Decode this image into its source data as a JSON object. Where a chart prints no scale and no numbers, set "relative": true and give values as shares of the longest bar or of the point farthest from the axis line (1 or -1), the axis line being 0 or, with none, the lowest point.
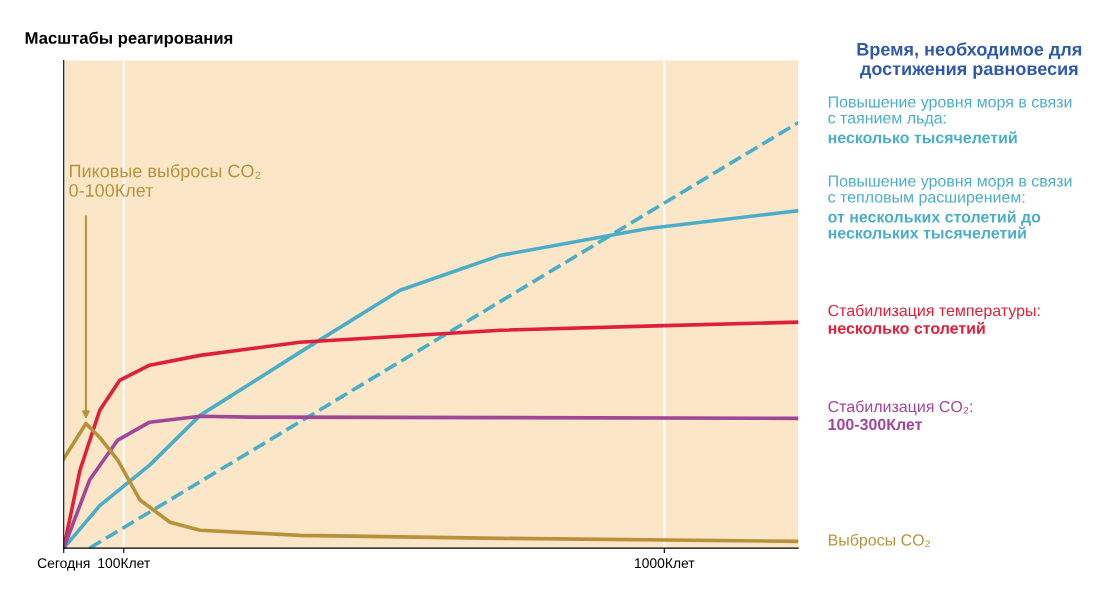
{
  "chart_data": {
    "type": "line",
    "title": "Масштабы реагирования",
    "relative": true,
    "tick_labels": "x",
    "grid": "x",
    "legend": false,
    "xlim": [
      0,
      1223
    ],
    "xticks": [
      {
        "value": 0,
        "label": "Сегодня"
      },
      {
        "value": 100,
        "label": "100Клет"
      },
      {
        "value": 1000,
        "label": "1000Клет"
      }
    ],
    "annotations": [
      "Время, необходимое для\nдостижения равновесия",
      "Пиковые выбросы CO₂\n0-100Клет"
    ],
    "series": [
      {
        "name": "Повышение уровня моря в связи\nс таянием льда:\nнесколько тысячелетий",
        "color": "#4aaec8",
        "line_style": "dashed",
        "x": [
          43,
          1223
        ],
        "values": [
          0,
          1
        ]
      },
      {
        "name": "Повышение уровня моря в связи\nс тепловым расширением:\nот нескольких столетий до\nнескольких тысячелетий",
        "color": "#4aaec8",
        "line_style": "solid",
        "x": [
          0,
          60,
          143,
          227,
          393,
          560,
          727,
          973,
          1223
        ],
        "values": [
          0,
          0.1,
          0.195,
          0.312,
          0.46,
          0.606,
          0.688,
          0.751,
          0.793
        ]
      },
      {
        "name": "Стабилизация температуры:\nнесколько столетий",
        "color": "#e0203a",
        "line_style": "solid",
        "x": [
          0,
          27,
          60,
          93,
          143,
          227,
          393,
          727,
          1000,
          1223
        ],
        "values": [
          0,
          0.183,
          0.324,
          0.394,
          0.43,
          0.453,
          0.484,
          0.512,
          0.523,
          0.531
        ]
      },
      {
        "name": "Стабилизация CO₂:\n100-300Клет",
        "color": "#a0479a",
        "line_style": "solid",
        "x": [
          0,
          43,
          90,
          143,
          227,
          310,
          1223
        ],
        "values": [
          0,
          0.16,
          0.254,
          0.296,
          0.31,
          0.308,
          0.305
        ]
      },
      {
        "name": "Выбросы CO₂",
        "color": "#b8923a",
        "line_style": "solid",
        "x": [
          0,
          37,
          60,
          90,
          127,
          177,
          227,
          393,
          727,
          1223
        ],
        "values": [
          0.21,
          0.293,
          0.26,
          0.207,
          0.113,
          0.061,
          0.042,
          0.03,
          0.023,
          0.016
        ]
      }
    ]
  }
}
